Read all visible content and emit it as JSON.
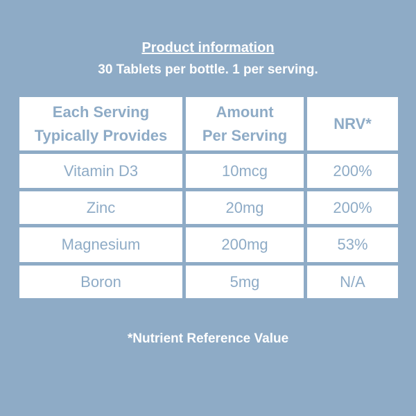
{
  "header": {
    "title": "Product information",
    "subtitle": "30 Tablets per bottle. 1 per serving."
  },
  "table": {
    "columns": [
      [
        "Each Serving",
        "Typically Provides"
      ],
      [
        "Amount",
        "Per Serving"
      ],
      [
        "NRV*"
      ]
    ],
    "rows": [
      [
        "Vitamin D3",
        "10mcg",
        "200%"
      ],
      [
        "Zinc",
        "20mg",
        "200%"
      ],
      [
        "Magnesium",
        "200mg",
        "53%"
      ],
      [
        "Boron",
        "5mg",
        "N/A"
      ]
    ]
  },
  "footnote": "*Nutrient Reference Value"
}
